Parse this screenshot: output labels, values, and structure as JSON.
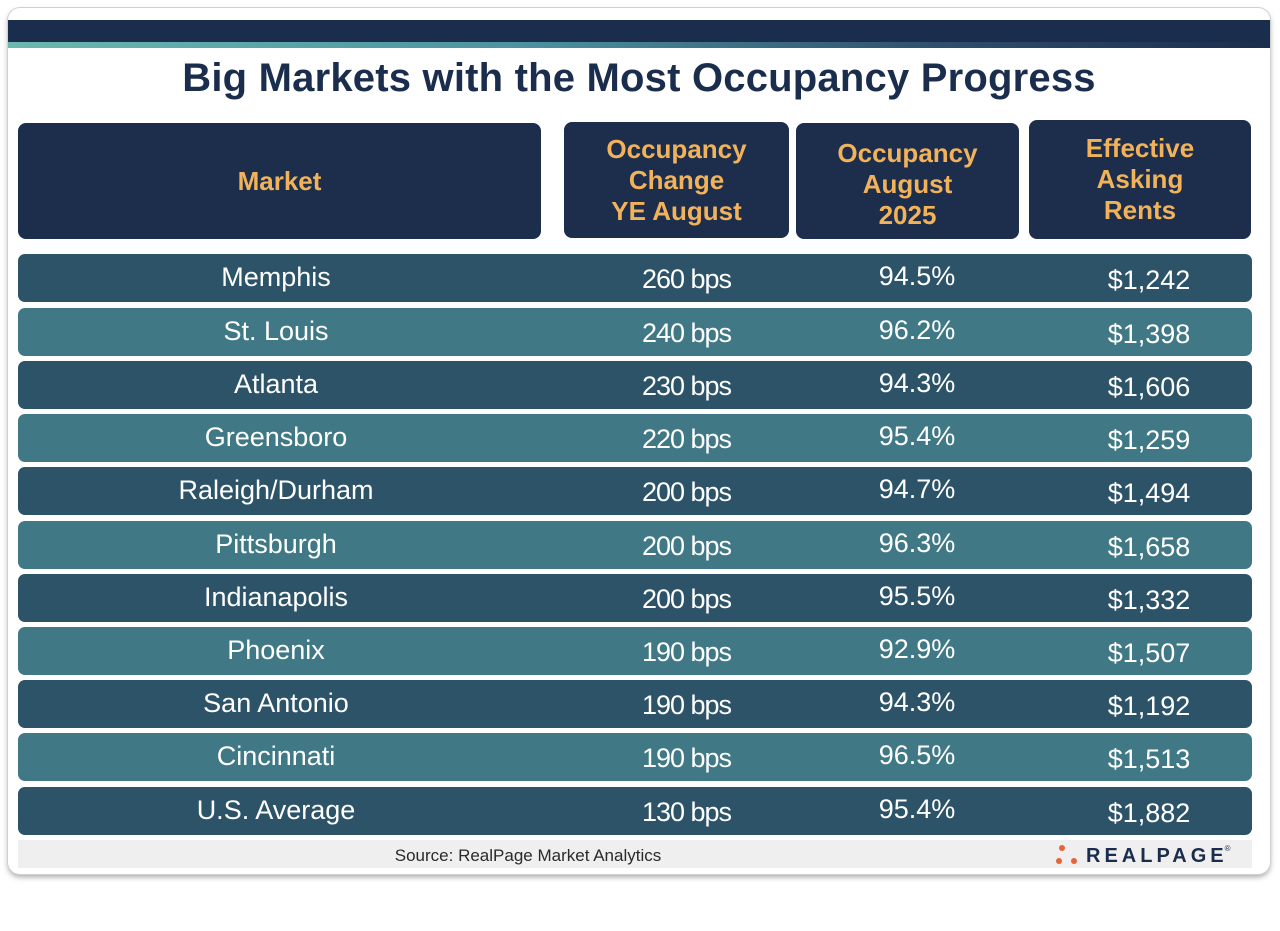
{
  "chart_data": {
    "type": "table",
    "title": "Big Markets with the Most Occupancy Progress",
    "columns": [
      "Market",
      "Occupancy\nChange\nYE August",
      "Occupancy\nAugust\n2025",
      "Effective\nAsking\nRents"
    ],
    "rows": [
      {
        "market": "Memphis",
        "change": "260 bps",
        "occupancy": "94.5%",
        "rent": "$1,242"
      },
      {
        "market": "St. Louis",
        "change": "240 bps",
        "occupancy": "96.2%",
        "rent": "$1,398"
      },
      {
        "market": "Atlanta",
        "change": "230 bps",
        "occupancy": "94.3%",
        "rent": "$1,606"
      },
      {
        "market": "Greensboro",
        "change": "220 bps",
        "occupancy": "95.4%",
        "rent": "$1,259"
      },
      {
        "market": "Raleigh/Durham",
        "change": "200 bps",
        "occupancy": "94.7%",
        "rent": "$1,494"
      },
      {
        "market": "Pittsburgh",
        "change": "200 bps",
        "occupancy": "96.3%",
        "rent": "$1,658"
      },
      {
        "market": "Indianapolis",
        "change": "200 bps",
        "occupancy": "95.5%",
        "rent": "$1,332"
      },
      {
        "market": "Phoenix",
        "change": "190 bps",
        "occupancy": "92.9%",
        "rent": "$1,507"
      },
      {
        "market": "San Antonio",
        "change": "190 bps",
        "occupancy": "94.3%",
        "rent": "$1,192"
      },
      {
        "market": "Cincinnati",
        "change": "190 bps",
        "occupancy": "96.5%",
        "rent": "$1,513"
      },
      {
        "market": "U.S. Average",
        "change": "130 bps",
        "occupancy": "95.4%",
        "rent": "$1,882"
      }
    ]
  },
  "footer": {
    "source": "Source: RealPage Market Analytics",
    "logo_text": "REALPAGE",
    "logo_mark": "®"
  },
  "colors": {
    "navy": "#1b2d4d",
    "header_text": "#f2b25a",
    "row_dark": "#2c5368",
    "row_light": "#407985",
    "logo_dots": "#e8623a"
  }
}
